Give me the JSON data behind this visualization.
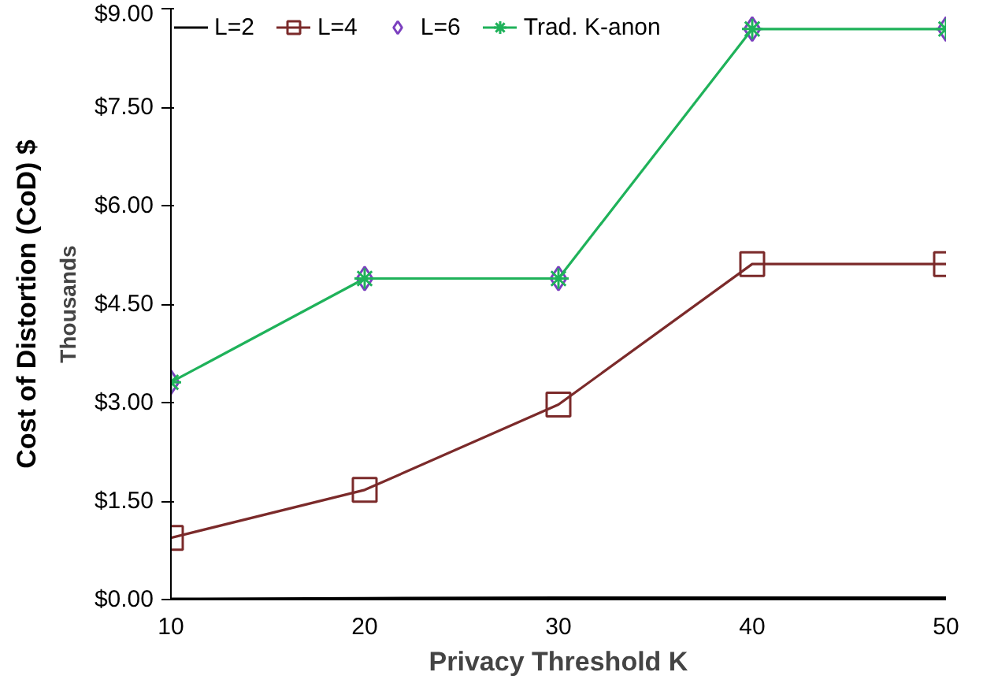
{
  "chart_data": {
    "type": "line",
    "xlabel": "Privacy Threshold K",
    "ylabel": "Cost of Distortion (CoD) $",
    "annotations": [
      "Thousands"
    ],
    "x": [
      10,
      20,
      30,
      40,
      50
    ],
    "xlim": [
      10,
      50
    ],
    "xticks": [
      10,
      20,
      30,
      40,
      50
    ],
    "ylim": [
      0,
      9
    ],
    "yticks": [
      {
        "value": 0,
        "label": "$0.00"
      },
      {
        "value": 1.5,
        "label": "$1.50"
      },
      {
        "value": 3,
        "label": "$3.00"
      },
      {
        "value": 4.5,
        "label": "$4.50"
      },
      {
        "value": 6,
        "label": "$6.00"
      },
      {
        "value": 7.5,
        "label": "$7.50"
      },
      {
        "value": 9,
        "label": "$9.00"
      }
    ],
    "series": [
      {
        "name": "L=2",
        "color": "#000000",
        "values": [
          0.01,
          0.02,
          0.03,
          0.03,
          0.03
        ]
      },
      {
        "name": "L=4",
        "color": "#7b2a2a",
        "marker": "square",
        "values": [
          0.94,
          1.67,
          2.97,
          5.11,
          5.11
        ]
      },
      {
        "name": "L=6",
        "type": "scatter",
        "color": "#7b3fbf",
        "marker": "diamond",
        "values": [
          3.31,
          4.89,
          4.89,
          8.69,
          8.69
        ]
      },
      {
        "name": "Trad. K-anon",
        "color": "#1fb25a",
        "marker": "cross",
        "values": [
          3.31,
          4.89,
          4.89,
          8.69,
          8.69
        ]
      }
    ],
    "legend": "top",
    "grid": false
  }
}
